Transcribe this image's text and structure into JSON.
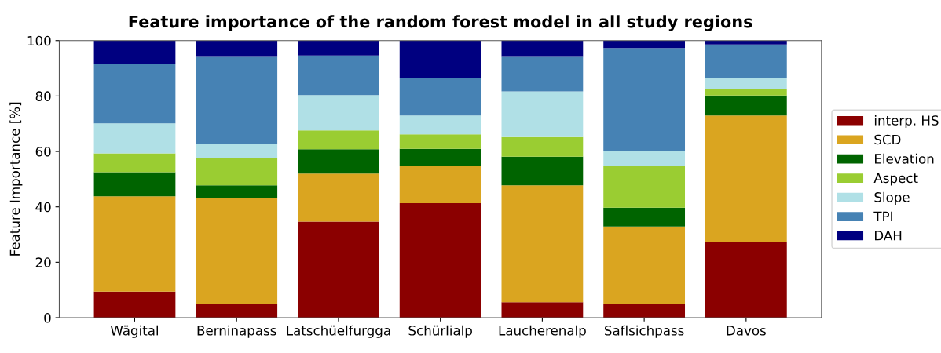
{
  "chart_data": {
    "type": "bar",
    "title": "Feature importance of the random forest model in all study regions",
    "ylabel": "Feature Importance [%]",
    "categories": [
      "Wägital",
      "Berninapass",
      "Latschüelfurgga",
      "Schürlialp",
      "Laucherenalp",
      "Saflsichpass",
      "Davos"
    ],
    "stacked": true,
    "ylim": [
      0,
      100
    ],
    "yticks": [
      0,
      20,
      40,
      60,
      80,
      100
    ],
    "grid": false,
    "legend": "right",
    "series": [
      {
        "name": "interp. HS",
        "color": "#8b0000",
        "values": [
          9.4,
          5.0,
          34.7,
          41.3,
          5.6,
          4.8,
          27.2
        ]
      },
      {
        "name": "SCD",
        "color": "#daa520",
        "values": [
          34.4,
          38.0,
          17.3,
          13.6,
          42.2,
          28.1,
          45.8
        ]
      },
      {
        "name": "Elevation",
        "color": "#006400",
        "values": [
          8.7,
          4.8,
          8.8,
          6.0,
          10.3,
          6.8,
          7.2
        ]
      },
      {
        "name": "Aspect",
        "color": "#9acd32",
        "values": [
          6.8,
          9.8,
          6.8,
          5.3,
          7.1,
          15.1,
          2.3
        ]
      },
      {
        "name": "Slope",
        "color": "#b0e0e6",
        "values": [
          10.8,
          5.2,
          12.7,
          6.8,
          16.5,
          5.2,
          3.9
        ]
      },
      {
        "name": "TPI",
        "color": "#4682b4",
        "values": [
          21.6,
          31.3,
          14.3,
          13.5,
          12.4,
          37.3,
          12.2
        ]
      },
      {
        "name": "DAH",
        "color": "#000080",
        "values": [
          8.3,
          5.9,
          5.4,
          13.5,
          5.9,
          2.7,
          1.4
        ]
      }
    ]
  }
}
